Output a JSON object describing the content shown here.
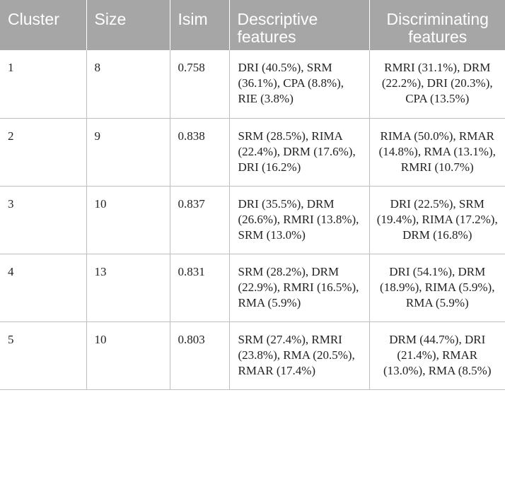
{
  "table": {
    "headers": {
      "cluster": "Cluster",
      "size": "Size",
      "isim": "Isim",
      "descriptive": "Descriptive features",
      "discriminating": "Discriminating features"
    },
    "rows": [
      {
        "cluster": "1",
        "size": "8",
        "isim": "0.758",
        "descriptive": "DRI (40.5%), SRM (36.1%), CPA (8.8%), RIE (3.8%)",
        "discriminating": "RMRI (31.1%), DRM (22.2%), DRI (20.3%), CPA (13.5%)"
      },
      {
        "cluster": "2",
        "size": "9",
        "isim": "0.838",
        "descriptive": "SRM (28.5%), RIMA (22.4%), DRM (17.6%), DRI (16.2%)",
        "discriminating": "RIMA (50.0%), RMAR (14.8%), RMA (13.1%), RMRI (10.7%)"
      },
      {
        "cluster": "3",
        "size": "10",
        "isim": "0.837",
        "descriptive": "DRI (35.5%), DRM (26.6%), RMRI (13.8%), SRM (13.0%)",
        "discriminating": "DRI (22.5%), SRM (19.4%), RIMA (17.2%), DRM (16.8%)"
      },
      {
        "cluster": "4",
        "size": "13",
        "isim": "0.831",
        "descriptive": "SRM (28.2%), DRM (22.9%), RMRI (16.5%), RMA (5.9%)",
        "discriminating": "DRI (54.1%), DRM (18.9%), RIMA (5.9%), RMA (5.9%)"
      },
      {
        "cluster": "5",
        "size": "10",
        "isim": "0.803",
        "descriptive": "SRM (27.4%), RMRI (23.8%), RMA (20.5%), RMAR (17.4%)",
        "discriminating": "DRM (44.7%), DRI (21.4%), RMAR (13.0%), RMA (8.5%)"
      }
    ]
  }
}
